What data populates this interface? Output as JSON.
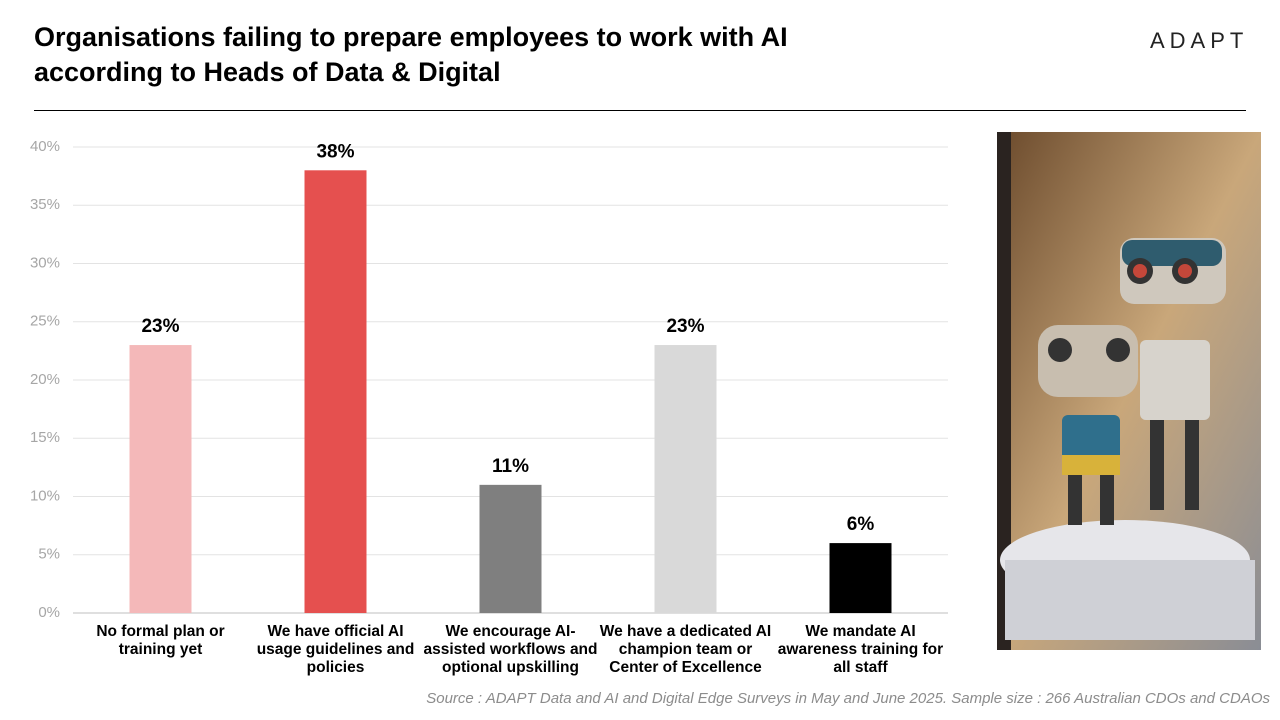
{
  "logo": "ADAPT",
  "chart_data": {
    "type": "bar",
    "title": "Organisations failing to prepare employees to work with AI according to Heads of Data & Digital",
    "categories": [
      "No formal plan or training yet",
      "We have official AI usage guidelines and policies",
      "We encourage AI-assisted workflows and optional upskilling",
      "We have a dedicated AI champion team or Center of Excellence",
      "We mandate AI awareness training for all staff"
    ],
    "values": [
      23,
      38,
      11,
      23,
      6
    ],
    "value_labels": [
      "23%",
      "38%",
      "11%",
      "23%",
      "6%"
    ],
    "colors": [
      "#f4b8b9",
      "#e5504f",
      "#7f7f7f",
      "#d9d9d9",
      "#000000"
    ],
    "ylim": [
      0,
      40
    ],
    "yticks": [
      {
        "value": 0,
        "label": "0%"
      },
      {
        "value": 5,
        "label": "5%"
      },
      {
        "value": 10,
        "label": "10%"
      },
      {
        "value": 15,
        "label": "15%"
      },
      {
        "value": 20,
        "label": "20%"
      },
      {
        "value": 25,
        "label": "25%"
      },
      {
        "value": 30,
        "label": "30%"
      },
      {
        "value": 35,
        "label": "35%"
      },
      {
        "value": 40,
        "label": "40%"
      }
    ],
    "grid": true
  },
  "source": "Source : ADAPT Data and AI and Digital Edge Surveys in May and June 2025. Sample size : 266 Australian CDOs and CDAOs"
}
